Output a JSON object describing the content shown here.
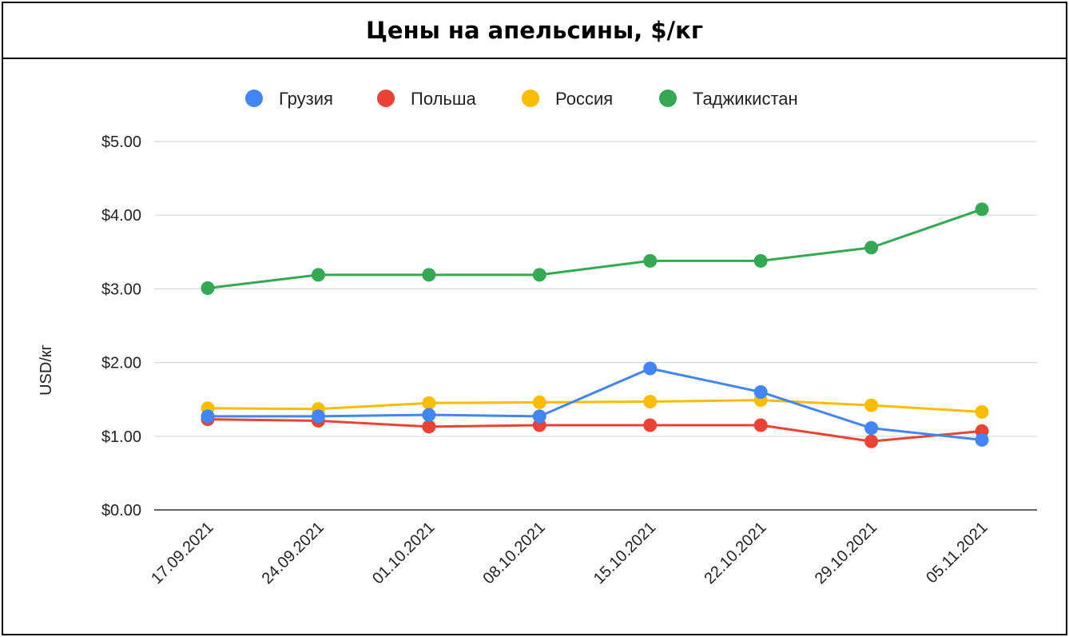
{
  "chart_data": {
    "type": "line",
    "title": "Цены на апельсины, $/кг",
    "ylabel": "USD/кг",
    "xlabel": "",
    "categories": [
      "17.09.2021",
      "24.09.2021",
      "01.10.2021",
      "08.10.2021",
      "15.10.2021",
      "22.10.2021",
      "29.10.2021",
      "05.11.2021"
    ],
    "ylim": [
      0,
      5
    ],
    "yticks": [
      "$0.00",
      "$1.00",
      "$2.00",
      "$3.00",
      "$4.00",
      "$5.00"
    ],
    "grid": true,
    "legend_position": "top",
    "series": [
      {
        "name": "Грузия",
        "color": "#4285F4",
        "values": [
          1.27,
          1.27,
          1.29,
          1.27,
          1.92,
          1.6,
          1.11,
          0.95
        ]
      },
      {
        "name": "Польша",
        "color": "#EA4335",
        "values": [
          1.23,
          1.21,
          1.13,
          1.15,
          1.15,
          1.15,
          0.93,
          1.07
        ]
      },
      {
        "name": "Россия",
        "color": "#FBBC04",
        "values": [
          1.38,
          1.37,
          1.45,
          1.46,
          1.47,
          1.49,
          1.42,
          1.33
        ]
      },
      {
        "name": "Таджикистан",
        "color": "#34A853",
        "values": [
          3.01,
          3.19,
          3.19,
          3.19,
          3.38,
          3.38,
          3.56,
          4.08
        ]
      }
    ]
  }
}
